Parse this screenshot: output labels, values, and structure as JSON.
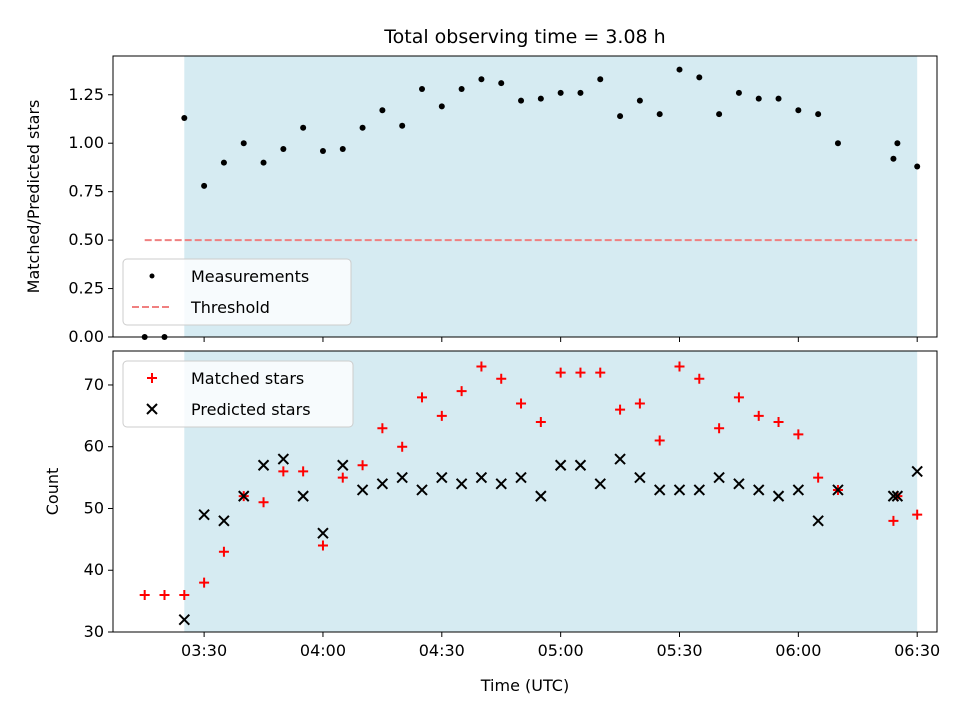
{
  "chart_data": [
    {
      "type": "scatter",
      "title": "Total observing time = 3.08 h",
      "ylabel": "Matched/Predicted stars",
      "xlabel": "",
      "xlim": [
        "03:07",
        "06:35"
      ],
      "ylim": [
        0,
        1.45
      ],
      "x_tick_labels": [],
      "y_ticks": [
        "0.00",
        "0.25",
        "0.50",
        "0.75",
        "1.00",
        "1.25"
      ],
      "shaded_span": {
        "x": [
          "03:25",
          "06:30"
        ],
        "color": "#add8e6"
      },
      "legend": {
        "position": "lower-left",
        "entries": [
          "Measurements",
          "Threshold"
        ]
      },
      "series": [
        {
          "name": "Measurements",
          "marker": "dot",
          "color": "#000000",
          "points": [
            [
              "03:15",
              0.0
            ],
            [
              "03:20",
              0.0
            ],
            [
              "03:25",
              1.13
            ],
            [
              "03:30",
              0.78
            ],
            [
              "03:35",
              0.9
            ],
            [
              "03:40",
              1.0
            ],
            [
              "03:45",
              0.9
            ],
            [
              "03:50",
              0.97
            ],
            [
              "03:55",
              1.08
            ],
            [
              "04:00",
              0.96
            ],
            [
              "04:05",
              0.97
            ],
            [
              "04:10",
              1.08
            ],
            [
              "04:15",
              1.17
            ],
            [
              "04:20",
              1.09
            ],
            [
              "04:25",
              1.28
            ],
            [
              "04:30",
              1.19
            ],
            [
              "04:35",
              1.28
            ],
            [
              "04:40",
              1.33
            ],
            [
              "04:45",
              1.31
            ],
            [
              "04:50",
              1.22
            ],
            [
              "04:55",
              1.23
            ],
            [
              "05:00",
              1.26
            ],
            [
              "05:05",
              1.26
            ],
            [
              "05:10",
              1.33
            ],
            [
              "05:15",
              1.14
            ],
            [
              "05:20",
              1.22
            ],
            [
              "05:25",
              1.15
            ],
            [
              "05:30",
              1.38
            ],
            [
              "05:35",
              1.34
            ],
            [
              "05:40",
              1.15
            ],
            [
              "05:45",
              1.26
            ],
            [
              "05:50",
              1.23
            ],
            [
              "05:55",
              1.23
            ],
            [
              "06:00",
              1.17
            ],
            [
              "06:05",
              1.15
            ],
            [
              "06:10",
              1.0
            ],
            [
              "06:24",
              0.92
            ],
            [
              "06:25",
              1.0
            ],
            [
              "06:30",
              0.88
            ]
          ]
        },
        {
          "name": "Threshold",
          "marker": "dashed-line",
          "color": "#f08080",
          "points": [
            [
              "03:15",
              0.5
            ],
            [
              "06:30",
              0.5
            ]
          ]
        }
      ]
    },
    {
      "type": "scatter",
      "title": "",
      "ylabel": "Count",
      "xlabel": "Time (UTC)",
      "xlim": [
        "03:07",
        "06:35"
      ],
      "ylim": [
        30,
        75.5
      ],
      "x_tick_labels": [
        "03:30",
        "04:00",
        "04:30",
        "05:00",
        "05:30",
        "06:00",
        "06:30"
      ],
      "y_ticks": [
        "30",
        "40",
        "50",
        "60",
        "70"
      ],
      "shaded_span": {
        "x": [
          "03:25",
          "06:30"
        ],
        "color": "#add8e6"
      },
      "legend": {
        "position": "upper-left",
        "entries": [
          "Matched stars",
          "Predicted stars"
        ]
      },
      "series": [
        {
          "name": "Matched stars",
          "marker": "plus",
          "color": "#ff0000",
          "points": [
            [
              "03:15",
              36
            ],
            [
              "03:20",
              36
            ],
            [
              "03:25",
              36
            ],
            [
              "03:30",
              38
            ],
            [
              "03:35",
              43
            ],
            [
              "03:40",
              52
            ],
            [
              "03:45",
              51
            ],
            [
              "03:50",
              56
            ],
            [
              "03:55",
              56
            ],
            [
              "04:00",
              44
            ],
            [
              "04:05",
              55
            ],
            [
              "04:10",
              57
            ],
            [
              "04:15",
              63
            ],
            [
              "04:20",
              60
            ],
            [
              "04:25",
              68
            ],
            [
              "04:30",
              65
            ],
            [
              "04:35",
              69
            ],
            [
              "04:40",
              73
            ],
            [
              "04:45",
              71
            ],
            [
              "04:50",
              67
            ],
            [
              "04:55",
              64
            ],
            [
              "05:00",
              72
            ],
            [
              "05:05",
              72
            ],
            [
              "05:10",
              72
            ],
            [
              "05:15",
              66
            ],
            [
              "05:20",
              67
            ],
            [
              "05:25",
              61
            ],
            [
              "05:30",
              73
            ],
            [
              "05:35",
              71
            ],
            [
              "05:40",
              63
            ],
            [
              "05:45",
              68
            ],
            [
              "05:50",
              65
            ],
            [
              "05:55",
              64
            ],
            [
              "06:00",
              62
            ],
            [
              "06:05",
              55
            ],
            [
              "06:10",
              53
            ],
            [
              "06:24",
              48
            ],
            [
              "06:25",
              52
            ],
            [
              "06:30",
              49
            ]
          ]
        },
        {
          "name": "Predicted stars",
          "marker": "x",
          "color": "#000000",
          "points": [
            [
              "03:25",
              32
            ],
            [
              "03:30",
              49
            ],
            [
              "03:35",
              48
            ],
            [
              "03:40",
              52
            ],
            [
              "03:45",
              57
            ],
            [
              "03:50",
              58
            ],
            [
              "03:55",
              52
            ],
            [
              "04:00",
              46
            ],
            [
              "04:05",
              57
            ],
            [
              "04:10",
              53
            ],
            [
              "04:15",
              54
            ],
            [
              "04:20",
              55
            ],
            [
              "04:25",
              53
            ],
            [
              "04:30",
              55
            ],
            [
              "04:35",
              54
            ],
            [
              "04:40",
              55
            ],
            [
              "04:45",
              54
            ],
            [
              "04:50",
              55
            ],
            [
              "04:55",
              52
            ],
            [
              "05:00",
              57
            ],
            [
              "05:05",
              57
            ],
            [
              "05:10",
              54
            ],
            [
              "05:15",
              58
            ],
            [
              "05:20",
              55
            ],
            [
              "05:25",
              53
            ],
            [
              "05:30",
              53
            ],
            [
              "05:35",
              53
            ],
            [
              "05:40",
              55
            ],
            [
              "05:45",
              54
            ],
            [
              "05:50",
              53
            ],
            [
              "05:55",
              52
            ],
            [
              "06:00",
              53
            ],
            [
              "06:05",
              48
            ],
            [
              "06:10",
              53
            ],
            [
              "06:24",
              52
            ],
            [
              "06:25",
              52
            ],
            [
              "06:30",
              56
            ]
          ]
        }
      ]
    }
  ]
}
